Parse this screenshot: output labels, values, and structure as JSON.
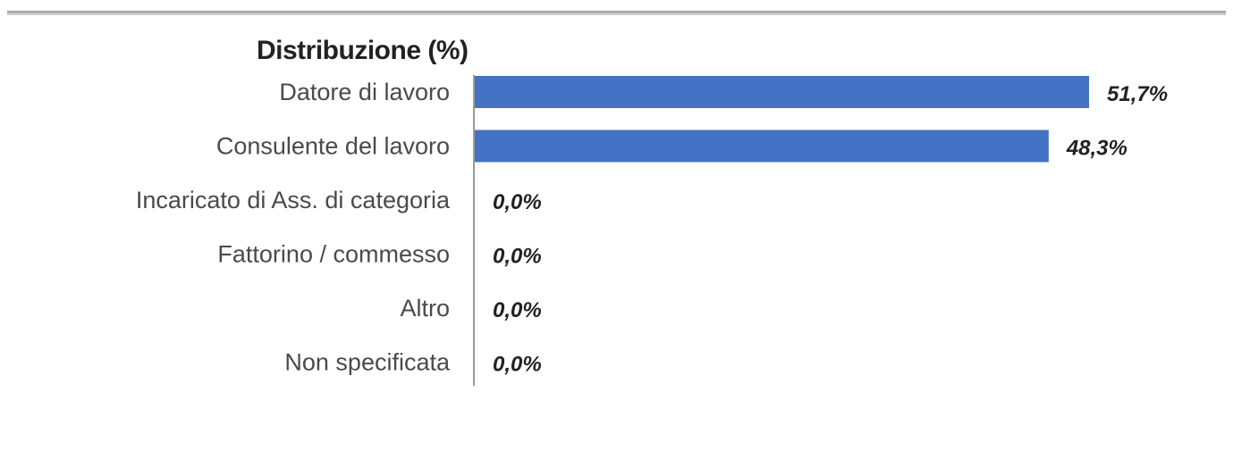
{
  "chart_data": {
    "type": "bar",
    "orientation": "horizontal",
    "title": "Distribuzione (%)",
    "categories": [
      "Datore di lavoro",
      "Consulente del lavoro",
      "Incaricato di Ass. di categoria",
      "Fattorino / commesso",
      "Altro",
      "Non specificata"
    ],
    "values": [
      51.7,
      48.3,
      0.0,
      0.0,
      0.0,
      0.0
    ],
    "value_labels": [
      "51,7%",
      "48,3%",
      "0,0%",
      "0,0%",
      "0,0%",
      "0,0%"
    ],
    "xlim": [
      0,
      51.7
    ],
    "grid": false,
    "legend": "none",
    "bar_color": "#4472C4"
  }
}
